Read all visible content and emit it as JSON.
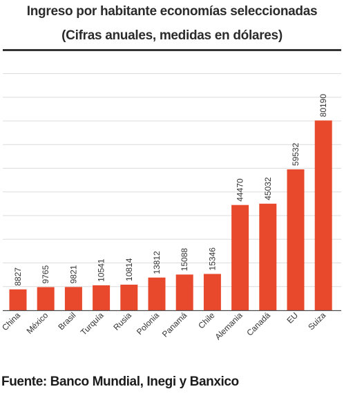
{
  "chart_data": {
    "type": "bar",
    "title": "Ingreso por habitante economías seleccionadas",
    "subtitle": "(Cifras anuales, medidas en dólares)",
    "categories": [
      "China",
      "México",
      "Brasil",
      "Turquía",
      "Rusia",
      "Polonia",
      "Panamá",
      "Chile",
      "Alemania",
      "Canadá",
      "EU",
      "Suiza"
    ],
    "values": [
      8827,
      9765,
      9821,
      10541,
      10814,
      13812,
      15088,
      15346,
      44470,
      45032,
      59532,
      80190
    ],
    "ylim": [
      0,
      100000
    ],
    "grid": true,
    "bar_color": "#e8492c",
    "grid_color": "#dcdcdc",
    "axis_color": "#4a4a4a"
  },
  "footer": {
    "source": "Fuente: Banco Mundial, Inegi y Banxico"
  }
}
